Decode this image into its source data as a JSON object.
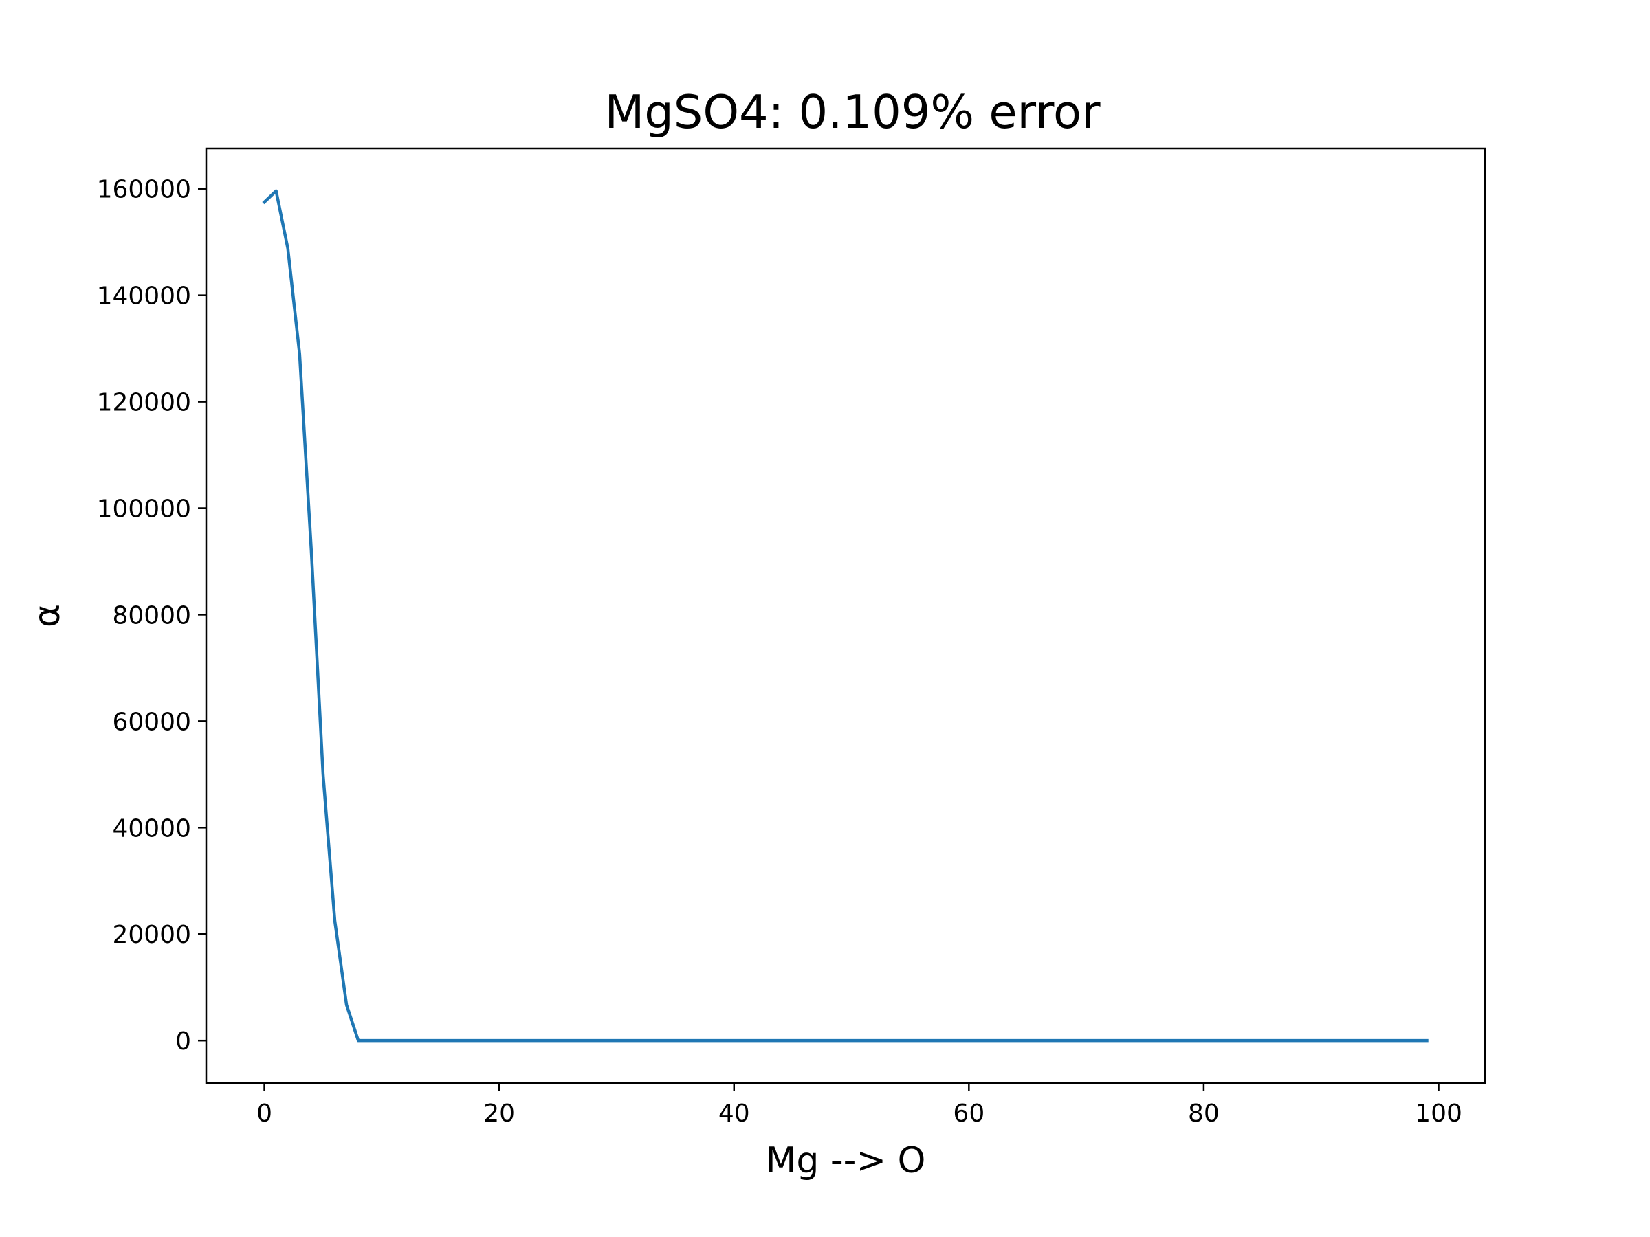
{
  "chart_data": {
    "type": "line",
    "title": "MgSO4: 0.109% error",
    "xlabel": "Mg --> O",
    "ylabel": "α",
    "xlim": [
      -4.95,
      103.95
    ],
    "ylim": [
      -7980,
      167580
    ],
    "xticks": [
      0,
      20,
      40,
      60,
      80,
      100
    ],
    "xtick_labels": [
      "0",
      "20",
      "40",
      "60",
      "80",
      "100"
    ],
    "yticks": [
      0,
      20000,
      40000,
      60000,
      80000,
      100000,
      120000,
      140000,
      160000
    ],
    "ytick_labels": [
      "0",
      "20000",
      "40000",
      "60000",
      "80000",
      "100000",
      "120000",
      "140000",
      "160000"
    ],
    "grid": false,
    "series": [
      {
        "color": "#1f77b4",
        "x": [
          0,
          1,
          2,
          3,
          4,
          5,
          6,
          7,
          8,
          9,
          99
        ],
        "y": [
          157500,
          159600,
          148800,
          129000,
          92000,
          50000,
          22500,
          6700,
          0,
          0,
          0
        ]
      }
    ]
  }
}
